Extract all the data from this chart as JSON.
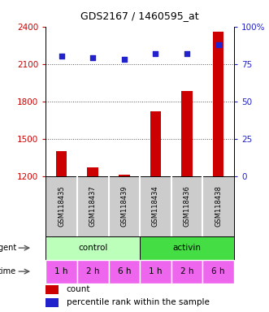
{
  "title": "GDS2167 / 1460595_at",
  "samples": [
    "GSM118435",
    "GSM118437",
    "GSM118439",
    "GSM118434",
    "GSM118436",
    "GSM118438"
  ],
  "counts": [
    1400,
    1270,
    1215,
    1720,
    1880,
    2360
  ],
  "percentile_ranks": [
    80,
    79,
    78,
    82,
    82,
    88
  ],
  "ylim_left": [
    1200,
    2400
  ],
  "ylim_right": [
    0,
    100
  ],
  "yticks_left": [
    1200,
    1500,
    1800,
    2100,
    2400
  ],
  "yticks_right": [
    0,
    25,
    50,
    75,
    100
  ],
  "ytick_labels_right": [
    "0",
    "25",
    "50",
    "75",
    "100%"
  ],
  "bar_color": "#cc0000",
  "dot_color": "#2222cc",
  "agent_colors": [
    "#bbffbb",
    "#44dd44"
  ],
  "time_labels": [
    "1 h",
    "2 h",
    "6 h",
    "1 h",
    "2 h",
    "6 h"
  ],
  "time_color": "#ee66ee",
  "grid_color": "#555555",
  "label_color_left": "#cc0000",
  "label_color_right": "#2222cc",
  "sample_box_color": "#cccccc",
  "bar_width": 0.35
}
